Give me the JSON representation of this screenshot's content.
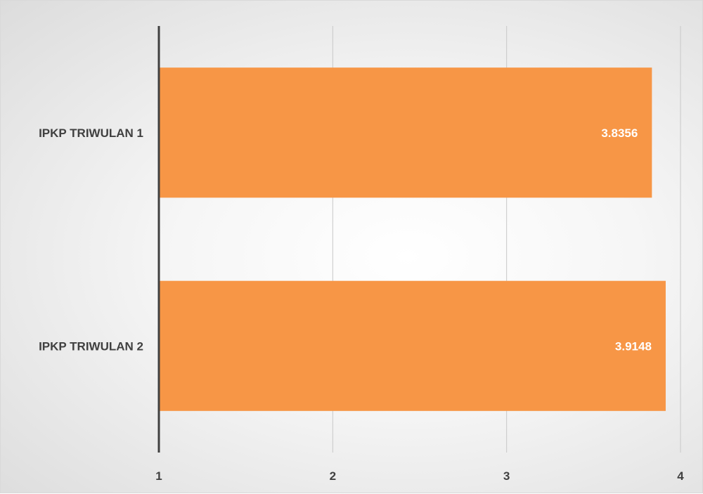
{
  "chart_data": {
    "type": "bar",
    "orientation": "horizontal",
    "categories": [
      "IPKP TRIWULAN 1",
      "IPKP TRIWULAN 2"
    ],
    "values": [
      3.8356,
      3.9148
    ],
    "data_labels": [
      "3.8356",
      "3.9148"
    ],
    "title": "",
    "xlabel": "",
    "ylabel": "",
    "xlim": [
      1,
      4
    ],
    "x_ticks": [
      "1",
      "2",
      "3",
      "4"
    ],
    "grid": "vertical",
    "legend": "none",
    "colors": {
      "bar": "#F79646",
      "label": "#404040",
      "data_label": "#ffffff"
    }
  }
}
